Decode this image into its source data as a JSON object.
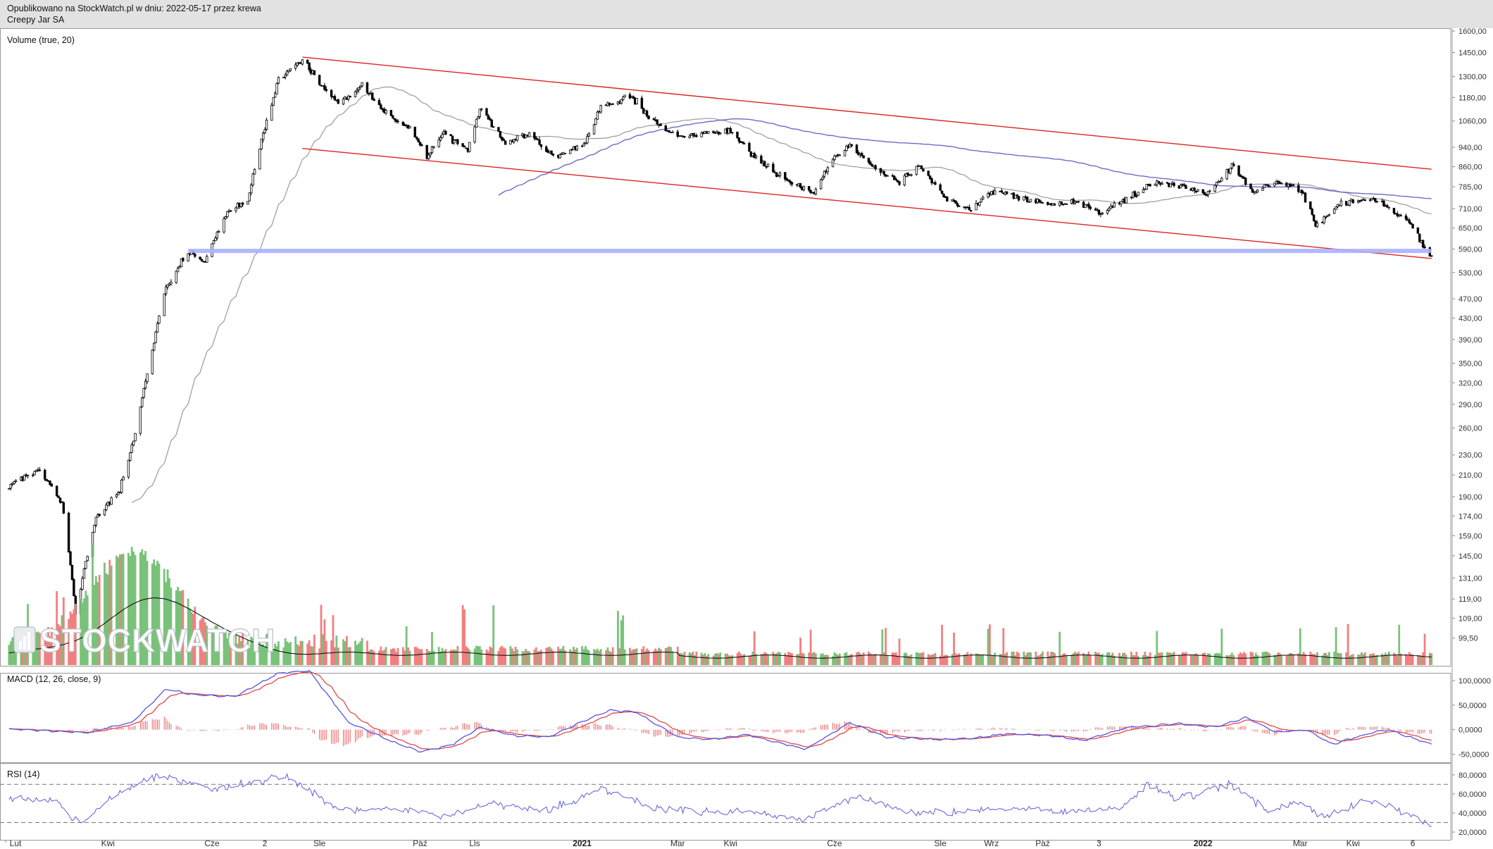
{
  "header": {
    "published": "Opublikowano na StockWatch.pl w dniu: 2022-05-17 przez krewa",
    "instrument": "Creepy Jar SA"
  },
  "watermark": "STOCKWATCH",
  "colors": {
    "up_volume": "#79c27a",
    "down_volume": "#f08080",
    "candle": "#000000",
    "channel": "#dd2222",
    "support": "#aab0ff",
    "ma_long": "#6b6bc8",
    "ma_short": "#9a9a9a",
    "macd_line": "#5555dd",
    "signal_line": "#e04848",
    "rsi_line": "#6a6ad8"
  },
  "chart_data": [
    {
      "type": "candlestick",
      "panel": "price",
      "title": "Volume (true, 20)",
      "scale": "log",
      "ylim": [
        92,
        1600
      ],
      "y_ticks": [
        "1600,00",
        "1450,00",
        "1300,00",
        "1180,00",
        "1060,00",
        "940,00",
        "860,00",
        "785,00",
        "710,00",
        "650,00",
        "590,00",
        "530,00",
        "470,00",
        "430,00",
        "390,00",
        "350,00",
        "320,00",
        "290,00",
        "260,00",
        "230,00",
        "210,00",
        "190,00",
        "174,00",
        "159,00",
        "145,00",
        "131,00",
        "119,00",
        "109,00",
        "99,50"
      ],
      "anchors": [
        {
          "date": "2020-02-03",
          "close": 200
        },
        {
          "date": "2020-02-20",
          "close": 215
        },
        {
          "date": "2020-03-05",
          "close": 185
        },
        {
          "date": "2020-03-13",
          "close": 110
        },
        {
          "date": "2020-03-25",
          "close": 172
        },
        {
          "date": "2020-04-08",
          "close": 195
        },
        {
          "date": "2020-04-16",
          "close": 245
        },
        {
          "date": "2020-04-24",
          "close": 330
        },
        {
          "date": "2020-05-05",
          "close": 490
        },
        {
          "date": "2020-05-18",
          "close": 585
        },
        {
          "date": "2020-05-28",
          "close": 560
        },
        {
          "date": "2020-06-10",
          "close": 700
        },
        {
          "date": "2020-06-22",
          "close": 740
        },
        {
          "date": "2020-07-01",
          "close": 1000
        },
        {
          "date": "2020-07-10",
          "close": 1280
        },
        {
          "date": "2020-07-24",
          "close": 1400
        },
        {
          "date": "2020-08-04",
          "close": 1250
        },
        {
          "date": "2020-08-14",
          "close": 1150
        },
        {
          "date": "2020-08-28",
          "close": 1250
        },
        {
          "date": "2020-09-10",
          "close": 1100
        },
        {
          "date": "2020-09-25",
          "close": 1020
        },
        {
          "date": "2020-10-05",
          "close": 900
        },
        {
          "date": "2020-10-15",
          "close": 1000
        },
        {
          "date": "2020-10-29",
          "close": 930
        },
        {
          "date": "2020-11-05",
          "close": 1120
        },
        {
          "date": "2020-11-20",
          "close": 960
        },
        {
          "date": "2020-12-04",
          "close": 1000
        },
        {
          "date": "2020-12-18",
          "close": 900
        },
        {
          "date": "2021-01-05",
          "close": 950
        },
        {
          "date": "2021-01-15",
          "close": 1130
        },
        {
          "date": "2021-02-02",
          "close": 1190
        },
        {
          "date": "2021-02-12",
          "close": 1080
        },
        {
          "date": "2021-03-01",
          "close": 990
        },
        {
          "date": "2021-03-15",
          "close": 1000
        },
        {
          "date": "2021-04-01",
          "close": 1010
        },
        {
          "date": "2021-04-15",
          "close": 900
        },
        {
          "date": "2021-05-05",
          "close": 800
        },
        {
          "date": "2021-05-20",
          "close": 760
        },
        {
          "date": "2021-06-01",
          "close": 900
        },
        {
          "date": "2021-06-10",
          "close": 950
        },
        {
          "date": "2021-06-25",
          "close": 850
        },
        {
          "date": "2021-07-08",
          "close": 800
        },
        {
          "date": "2021-07-20",
          "close": 860
        },
        {
          "date": "2021-08-06",
          "close": 740
        },
        {
          "date": "2021-08-20",
          "close": 710
        },
        {
          "date": "2021-09-01",
          "close": 770
        },
        {
          "date": "2021-09-20",
          "close": 745
        },
        {
          "date": "2021-10-05",
          "close": 720
        },
        {
          "date": "2021-10-20",
          "close": 730
        },
        {
          "date": "2021-11-05",
          "close": 700
        },
        {
          "date": "2021-11-20",
          "close": 740
        },
        {
          "date": "2021-12-05",
          "close": 800
        },
        {
          "date": "2021-12-20",
          "close": 790
        },
        {
          "date": "2022-01-05",
          "close": 760
        },
        {
          "date": "2022-01-20",
          "close": 860
        },
        {
          "date": "2022-02-01",
          "close": 760
        },
        {
          "date": "2022-02-15",
          "close": 800
        },
        {
          "date": "2022-03-01",
          "close": 780
        },
        {
          "date": "2022-03-10",
          "close": 660
        },
        {
          "date": "2022-03-25",
          "close": 730
        },
        {
          "date": "2022-04-12",
          "close": 740
        },
        {
          "date": "2022-04-20",
          "close": 720
        },
        {
          "date": "2022-05-05",
          "close": 660
        },
        {
          "date": "2022-05-12",
          "close": 600
        },
        {
          "date": "2022-05-17",
          "close": 575
        }
      ],
      "lines": [
        {
          "kind": "channel-upper",
          "from": {
            "date": "2020-07-24",
            "value": 1420
          },
          "to": {
            "date": "2022-05-17",
            "value": 850
          }
        },
        {
          "kind": "channel-lower",
          "from": {
            "date": "2020-07-24",
            "value": 935
          },
          "to": {
            "date": "2022-05-17",
            "value": 565
          }
        },
        {
          "kind": "support",
          "value": 585,
          "from": "2020-05-18",
          "to": "2022-05-17"
        }
      ]
    },
    {
      "type": "bar",
      "panel": "volume",
      "series": [
        {
          "values": "relative daily volume; peak near 2020-04-16"
        }
      ]
    },
    {
      "type": "line",
      "panel": "macd",
      "title": "MACD (12, 26, close, 9)",
      "ylim": [
        -55000,
        110000
      ],
      "y_ticks": [
        "100,0000",
        "50,0000",
        "0,0000",
        "-50,0000"
      ],
      "anchors": [
        {
          "date": "2020-02-01",
          "value": 2
        },
        {
          "date": "2020-03-20",
          "value": -6
        },
        {
          "date": "2020-04-15",
          "value": 15
        },
        {
          "date": "2020-05-05",
          "value": 82
        },
        {
          "date": "2020-05-25",
          "value": 70
        },
        {
          "date": "2020-06-15",
          "value": 68
        },
        {
          "date": "2020-07-10",
          "value": 115
        },
        {
          "date": "2020-07-28",
          "value": 120
        },
        {
          "date": "2020-08-20",
          "value": 15
        },
        {
          "date": "2020-09-15",
          "value": -25
        },
        {
          "date": "2020-10-01",
          "value": -45
        },
        {
          "date": "2020-10-20",
          "value": -30
        },
        {
          "date": "2020-11-05",
          "value": 5
        },
        {
          "date": "2020-11-25",
          "value": -12
        },
        {
          "date": "2020-12-15",
          "value": -15
        },
        {
          "date": "2021-01-20",
          "value": 40
        },
        {
          "date": "2021-02-05",
          "value": 35
        },
        {
          "date": "2021-03-01",
          "value": -15
        },
        {
          "date": "2021-03-20",
          "value": -20
        },
        {
          "date": "2021-04-10",
          "value": -10
        },
        {
          "date": "2021-05-15",
          "value": -40
        },
        {
          "date": "2021-06-10",
          "value": 15
        },
        {
          "date": "2021-07-01",
          "value": -15
        },
        {
          "date": "2021-08-01",
          "value": -20
        },
        {
          "date": "2021-08-20",
          "value": -18
        },
        {
          "date": "2021-09-10",
          "value": -8
        },
        {
          "date": "2021-10-05",
          "value": -12
        },
        {
          "date": "2021-10-25",
          "value": -22
        },
        {
          "date": "2021-11-20",
          "value": 5
        },
        {
          "date": "2021-12-20",
          "value": 12
        },
        {
          "date": "2022-01-10",
          "value": 5
        },
        {
          "date": "2022-01-28",
          "value": 25
        },
        {
          "date": "2022-02-15",
          "value": -5
        },
        {
          "date": "2022-03-05",
          "value": 0
        },
        {
          "date": "2022-03-20",
          "value": -30
        },
        {
          "date": "2022-04-10",
          "value": -8
        },
        {
          "date": "2022-04-22",
          "value": 0
        },
        {
          "date": "2022-05-17",
          "value": -30
        }
      ]
    },
    {
      "type": "line",
      "panel": "rsi",
      "title": "RSI (14)",
      "ylim": [
        20,
        85
      ],
      "y_ticks": [
        "80,0000",
        "60,0000",
        "40,0000",
        "20,0000"
      ],
      "levels": [
        70,
        30
      ],
      "anchors": [
        {
          "date": "2020-02-01",
          "value": 55
        },
        {
          "date": "2020-03-01",
          "value": 55
        },
        {
          "date": "2020-03-15",
          "value": 28
        },
        {
          "date": "2020-04-01",
          "value": 55
        },
        {
          "date": "2020-05-01",
          "value": 80
        },
        {
          "date": "2020-06-01",
          "value": 65
        },
        {
          "date": "2020-07-15",
          "value": 78
        },
        {
          "date": "2020-08-15",
          "value": 42
        },
        {
          "date": "2020-09-15",
          "value": 45
        },
        {
          "date": "2020-10-15",
          "value": 38
        },
        {
          "date": "2020-11-15",
          "value": 50
        },
        {
          "date": "2020-12-15",
          "value": 42
        },
        {
          "date": "2021-01-15",
          "value": 66
        },
        {
          "date": "2021-02-15",
          "value": 45
        },
        {
          "date": "2021-03-15",
          "value": 42
        },
        {
          "date": "2021-04-15",
          "value": 40
        },
        {
          "date": "2021-05-15",
          "value": 32
        },
        {
          "date": "2021-06-15",
          "value": 58
        },
        {
          "date": "2021-07-15",
          "value": 40
        },
        {
          "date": "2021-08-15",
          "value": 42
        },
        {
          "date": "2021-09-15",
          "value": 45
        },
        {
          "date": "2021-10-15",
          "value": 42
        },
        {
          "date": "2021-11-15",
          "value": 45
        },
        {
          "date": "2021-12-01",
          "value": 68
        },
        {
          "date": "2021-12-20",
          "value": 55
        },
        {
          "date": "2022-01-20",
          "value": 70
        },
        {
          "date": "2022-02-10",
          "value": 42
        },
        {
          "date": "2022-03-01",
          "value": 52
        },
        {
          "date": "2022-03-15",
          "value": 35
        },
        {
          "date": "2022-04-10",
          "value": 55
        },
        {
          "date": "2022-05-01",
          "value": 40
        },
        {
          "date": "2022-05-17",
          "value": 26
        }
      ]
    }
  ],
  "x_axis": {
    "labels": [
      {
        "text": "Lut",
        "date": "2020-02-01"
      },
      {
        "text": "Kwi",
        "date": "2020-04-01"
      },
      {
        "text": "Cze",
        "date": "2020-06-01"
      },
      {
        "text": "2",
        "date": "2020-07-02"
      },
      {
        "text": "Sie",
        "date": "2020-08-03"
      },
      {
        "text": "Paź",
        "date": "2020-10-01"
      },
      {
        "text": "Lis",
        "date": "2020-11-02"
      },
      {
        "text": "2021",
        "date": "2021-01-04",
        "bold": true
      },
      {
        "text": "Mar",
        "date": "2021-03-01"
      },
      {
        "text": "Kwi",
        "date": "2021-04-01"
      },
      {
        "text": "Cze",
        "date": "2021-06-01"
      },
      {
        "text": "Sie",
        "date": "2021-08-02"
      },
      {
        "text": "Wrz",
        "date": "2021-09-01"
      },
      {
        "text": "Paź",
        "date": "2021-10-01"
      },
      {
        "text": "3",
        "date": "2021-11-03"
      },
      {
        "text": "2022",
        "date": "2022-01-03",
        "bold": true
      },
      {
        "text": "Mar",
        "date": "2022-03-01"
      },
      {
        "text": "Kwi",
        "date": "2022-04-01"
      },
      {
        "text": "6",
        "date": "2022-05-06"
      }
    ]
  }
}
